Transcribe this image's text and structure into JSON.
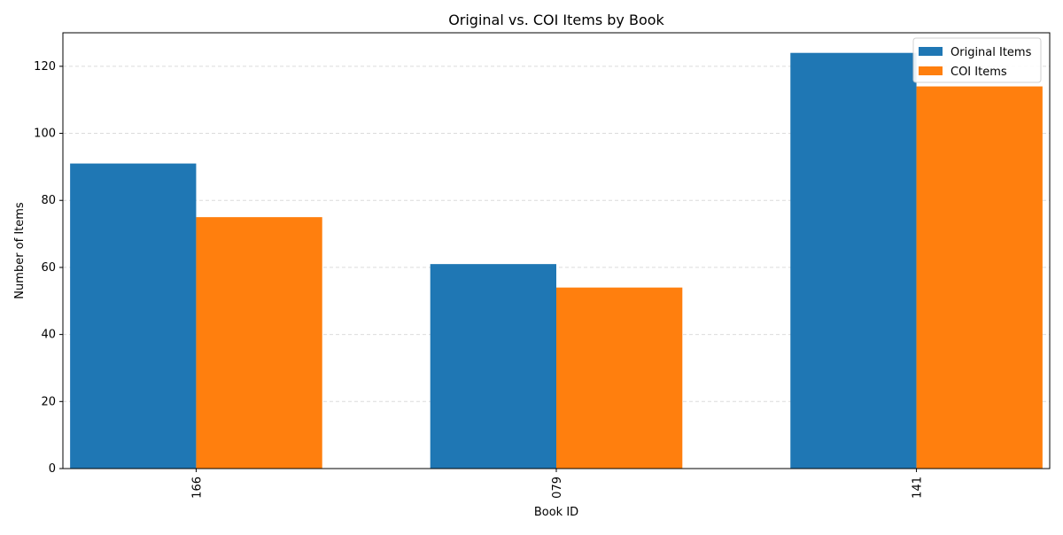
{
  "chart_data": {
    "type": "bar",
    "title": "Original vs. COI Items by Book",
    "xlabel": "Book ID",
    "ylabel": "Number of Items",
    "categories": [
      "166",
      "079",
      "141"
    ],
    "series": [
      {
        "name": "Original Items",
        "values": [
          91,
          61,
          124
        ],
        "color": "#1f77b4"
      },
      {
        "name": "COI Items",
        "values": [
          75,
          54,
          114
        ],
        "color": "#ff7f0e"
      }
    ],
    "ylim": [
      0,
      130
    ],
    "yticks": [
      0,
      20,
      40,
      60,
      80,
      100,
      120
    ],
    "grid": "horizontal dashed",
    "legend_position": "top-right",
    "x_tick_rotation": "vertical"
  }
}
